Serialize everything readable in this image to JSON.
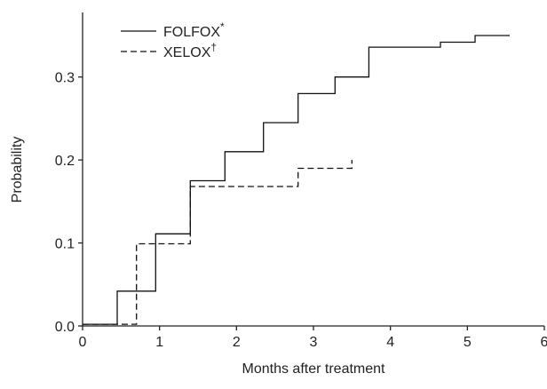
{
  "chart_data": {
    "type": "line",
    "step": true,
    "xlabel": "Months after treatment",
    "ylabel": "Probability",
    "xlim": [
      0,
      6
    ],
    "ylim": [
      0,
      0.35
    ],
    "xticks": [
      "0",
      "1",
      "2",
      "3",
      "4",
      "5",
      "6"
    ],
    "xtick_values": [
      0,
      1,
      2,
      3,
      4,
      5,
      6
    ],
    "yticks": [
      "0.0",
      "0.1",
      "0.2",
      "0.3"
    ],
    "ytick_values": [
      0,
      0.1,
      0.2,
      0.3
    ],
    "grid": false,
    "legend_position": "top-left",
    "series": [
      {
        "name": "FOLFOX",
        "marker": "*",
        "line_style": "solid",
        "color": "#111111",
        "points": [
          [
            0,
            0.002
          ],
          [
            0.45,
            0.002
          ],
          [
            0.45,
            0.042
          ],
          [
            0.95,
            0.042
          ],
          [
            0.95,
            0.111
          ],
          [
            1.4,
            0.111
          ],
          [
            1.4,
            0.175
          ],
          [
            1.85,
            0.175
          ],
          [
            1.85,
            0.21
          ],
          [
            2.35,
            0.21
          ],
          [
            2.35,
            0.245
          ],
          [
            2.8,
            0.245
          ],
          [
            2.8,
            0.28
          ],
          [
            3.28,
            0.28
          ],
          [
            3.28,
            0.3
          ],
          [
            3.72,
            0.3
          ],
          [
            3.72,
            0.336
          ],
          [
            4.65,
            0.336
          ],
          [
            4.65,
            0.342
          ],
          [
            5.1,
            0.342
          ],
          [
            5.1,
            0.35
          ],
          [
            5.55,
            0.35
          ]
        ]
      },
      {
        "name": "XELOX",
        "marker": "†",
        "line_style": "dashed",
        "color": "#111111",
        "points": [
          [
            0,
            0.002
          ],
          [
            0.7,
            0.002
          ],
          [
            0.7,
            0.099
          ],
          [
            1.4,
            0.099
          ],
          [
            1.4,
            0.168
          ],
          [
            2.8,
            0.168
          ],
          [
            2.8,
            0.19
          ],
          [
            3.5,
            0.19
          ],
          [
            3.5,
            0.2
          ]
        ]
      }
    ]
  }
}
